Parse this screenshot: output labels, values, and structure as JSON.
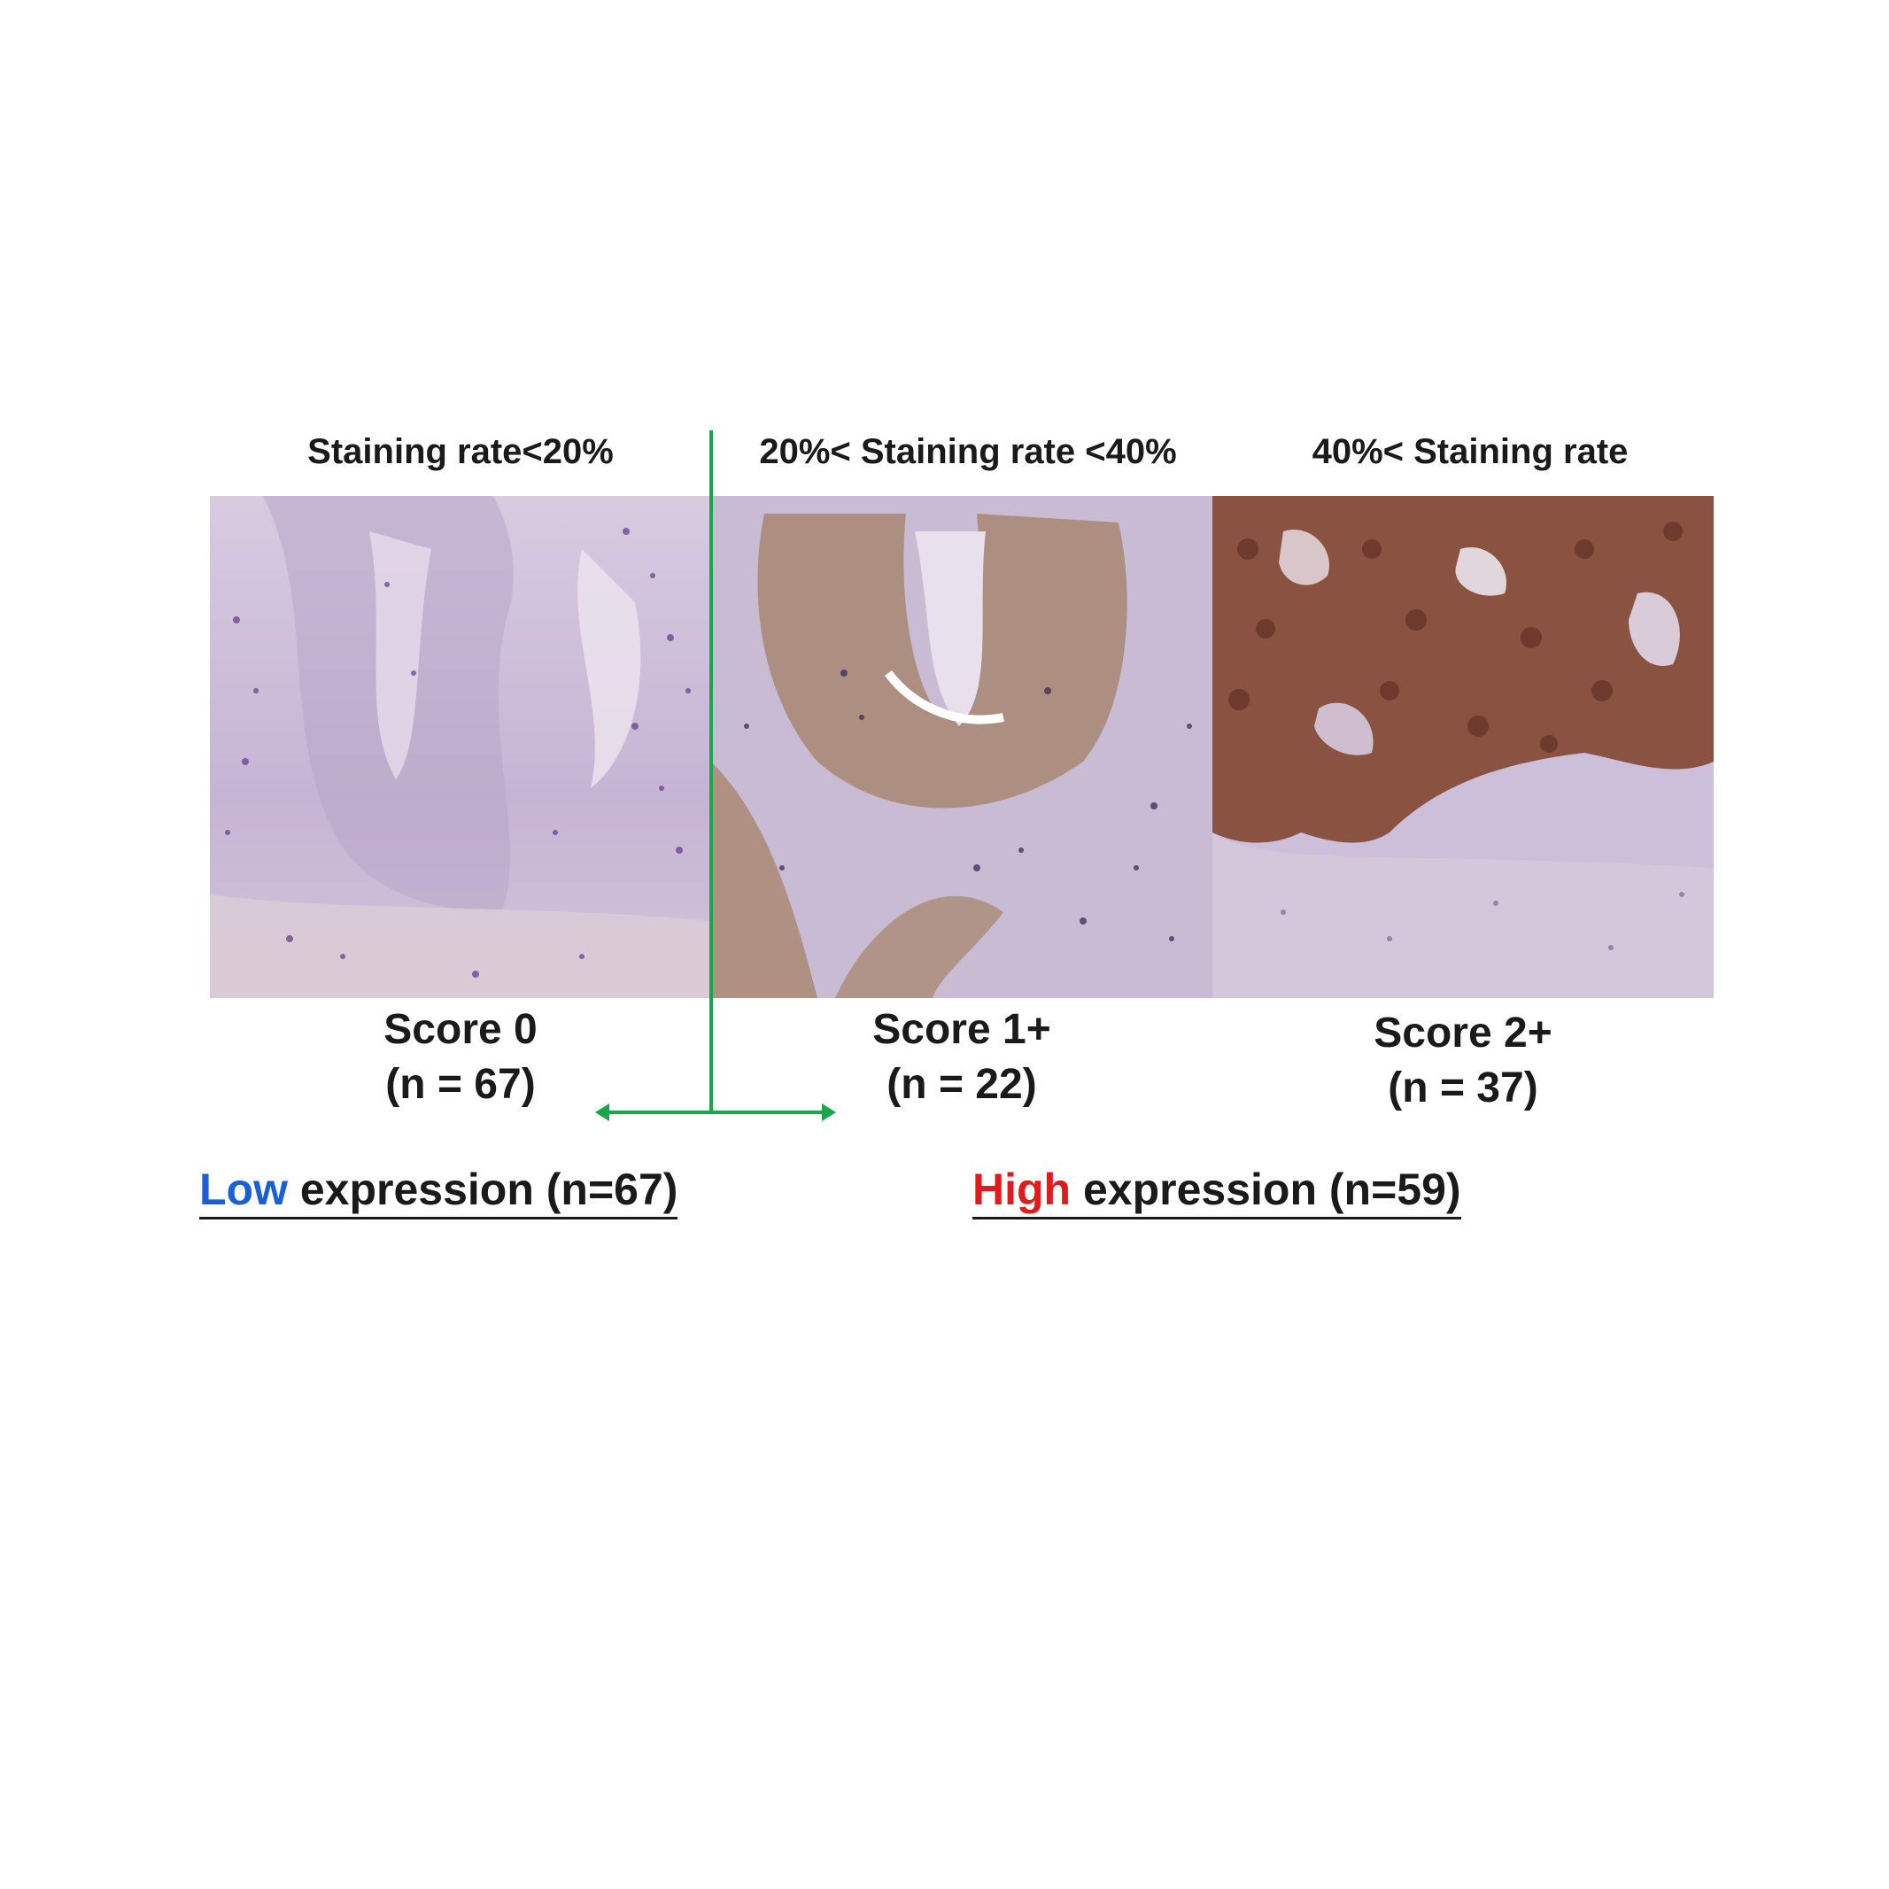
{
  "headers": {
    "panel1": "Staining rate<20%",
    "panel2": "20%< Staining rate <40%",
    "panel3": "40%< Staining rate"
  },
  "panels": [
    {
      "score": "Score 0",
      "n": "(n = 67)"
    },
    {
      "score": "Score 1+",
      "n": "(n = 22)"
    },
    {
      "score": "Score 2+",
      "n": "(n = 37)"
    }
  ],
  "groups": {
    "low": {
      "keyword": "Low",
      "rest": " expression (n=67)"
    },
    "high": {
      "keyword": "High",
      "rest": " expression (n=59)"
    }
  },
  "colors": {
    "divider": "#1aa64b",
    "low": "#1a5ed8",
    "high": "#e01b1b",
    "stain_weak": "#c9b8d6",
    "stain_medium": "#b59a8a",
    "stain_strong": "#8a4f3c"
  }
}
